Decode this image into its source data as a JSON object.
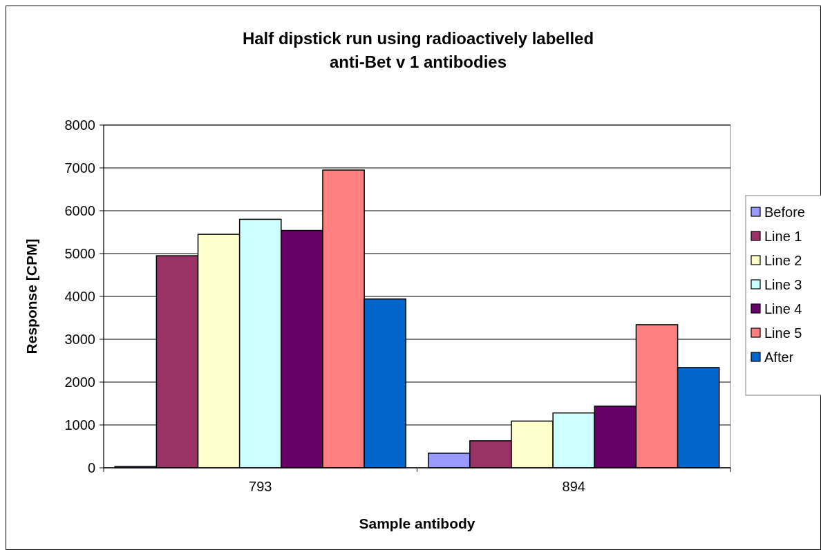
{
  "chart_data": {
    "type": "bar",
    "title": "Half dipstick run using radioactively labelled\nanti-Bet v 1 antibodies",
    "xlabel": "Sample antibody",
    "ylabel": "Response [CPM]",
    "categories": [
      "793",
      "894"
    ],
    "series": [
      {
        "name": "Before",
        "color": "#9999ff",
        "values": [
          30,
          340
        ]
      },
      {
        "name": "Line 1",
        "color": "#993366",
        "values": [
          4950,
          630
        ]
      },
      {
        "name": "Line 2",
        "color": "#ffffcc",
        "values": [
          5450,
          1090
        ]
      },
      {
        "name": "Line 3",
        "color": "#ccffff",
        "values": [
          5800,
          1280
        ]
      },
      {
        "name": "Line 4",
        "color": "#660066",
        "values": [
          5540,
          1440
        ]
      },
      {
        "name": "Line 5",
        "color": "#ff8080",
        "values": [
          6950,
          3340
        ]
      },
      {
        "name": "After",
        "color": "#0066cc",
        "values": [
          3940,
          2340
        ]
      }
    ],
    "ylim": [
      0,
      8000
    ],
    "yticks": [
      0,
      1000,
      2000,
      3000,
      4000,
      5000,
      6000,
      7000,
      8000
    ],
    "grid": "y",
    "legend": "right"
  }
}
